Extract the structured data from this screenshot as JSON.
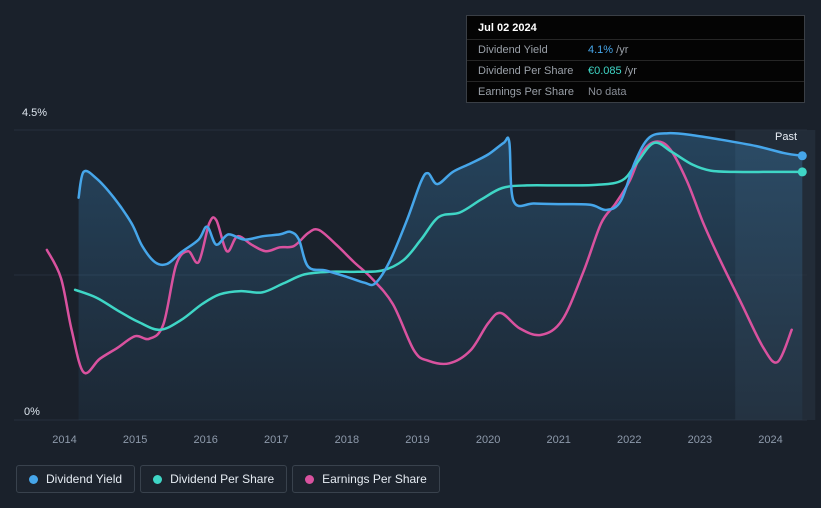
{
  "page": {
    "background": "#1a212b"
  },
  "tooltip": {
    "date": "Jul 02 2024",
    "rows": [
      {
        "label": "Dividend Yield",
        "value": "4.1%",
        "suffix": " /yr",
        "color": "#46a6ea"
      },
      {
        "label": "Dividend Per Share",
        "value": "€0.085",
        "suffix": " /yr",
        "color": "#3fd6c6"
      },
      {
        "label": "Earnings Per Share",
        "value": "No data",
        "suffix": "",
        "color": "#8a8f98"
      }
    ]
  },
  "axis": {
    "y_max_label": "4.5%",
    "y_min_label": "0%",
    "past_label": "Past"
  },
  "legend": {
    "items": [
      {
        "label": "Dividend Yield",
        "color": "#46a6ea"
      },
      {
        "label": "Dividend Per Share",
        "color": "#3fd6c6"
      },
      {
        "label": "Earnings Per Share",
        "color": "#d9529f"
      }
    ]
  },
  "chart_data": {
    "type": "line",
    "x_ticks": [
      2014,
      2015,
      2016,
      2017,
      2018,
      2019,
      2020,
      2021,
      2022,
      2023,
      2024
    ],
    "ylim": [
      0,
      4.5
    ],
    "y_unit": "%",
    "grid_values": [
      4.5,
      2.25,
      0
    ],
    "past_region_start_year": 2023.5,
    "x_end": 2024.55,
    "legend_position": "bottom-left",
    "series": [
      {
        "name": "Dividend Yield",
        "color": "#46a6ea",
        "area_fill": true,
        "end_dot": true,
        "points": [
          [
            2014.2,
            3.45
          ],
          [
            2014.27,
            3.85
          ],
          [
            2014.45,
            3.75
          ],
          [
            2014.7,
            3.45
          ],
          [
            2014.95,
            3.05
          ],
          [
            2015.1,
            2.7
          ],
          [
            2015.28,
            2.45
          ],
          [
            2015.45,
            2.42
          ],
          [
            2015.65,
            2.6
          ],
          [
            2015.9,
            2.8
          ],
          [
            2016.02,
            3.0
          ],
          [
            2016.15,
            2.72
          ],
          [
            2016.32,
            2.88
          ],
          [
            2016.55,
            2.8
          ],
          [
            2016.8,
            2.85
          ],
          [
            2017.05,
            2.88
          ],
          [
            2017.2,
            2.92
          ],
          [
            2017.32,
            2.8
          ],
          [
            2017.45,
            2.38
          ],
          [
            2017.7,
            2.32
          ],
          [
            2018.0,
            2.22
          ],
          [
            2018.25,
            2.13
          ],
          [
            2018.4,
            2.12
          ],
          [
            2018.6,
            2.45
          ],
          [
            2018.85,
            3.1
          ],
          [
            2019.05,
            3.7
          ],
          [
            2019.15,
            3.83
          ],
          [
            2019.28,
            3.66
          ],
          [
            2019.5,
            3.85
          ],
          [
            2019.75,
            3.98
          ],
          [
            2020.0,
            4.12
          ],
          [
            2020.22,
            4.3
          ],
          [
            2020.3,
            4.31
          ],
          [
            2020.36,
            3.4
          ],
          [
            2020.65,
            3.36
          ],
          [
            2021.05,
            3.35
          ],
          [
            2021.45,
            3.34
          ],
          [
            2021.68,
            3.26
          ],
          [
            2021.88,
            3.4
          ],
          [
            2022.08,
            4.0
          ],
          [
            2022.28,
            4.38
          ],
          [
            2022.55,
            4.45
          ],
          [
            2022.9,
            4.42
          ],
          [
            2023.3,
            4.35
          ],
          [
            2023.8,
            4.25
          ],
          [
            2024.2,
            4.14
          ],
          [
            2024.45,
            4.1
          ]
        ]
      },
      {
        "name": "Dividend Per Share",
        "color": "#3fd6c6",
        "area_fill": false,
        "end_dot": true,
        "points": [
          [
            2014.15,
            2.02
          ],
          [
            2014.45,
            1.9
          ],
          [
            2014.75,
            1.7
          ],
          [
            2015.05,
            1.52
          ],
          [
            2015.35,
            1.4
          ],
          [
            2015.65,
            1.55
          ],
          [
            2015.95,
            1.8
          ],
          [
            2016.2,
            1.95
          ],
          [
            2016.5,
            2.0
          ],
          [
            2016.8,
            1.98
          ],
          [
            2017.1,
            2.12
          ],
          [
            2017.4,
            2.26
          ],
          [
            2017.75,
            2.3
          ],
          [
            2018.15,
            2.3
          ],
          [
            2018.5,
            2.32
          ],
          [
            2018.8,
            2.48
          ],
          [
            2019.05,
            2.8
          ],
          [
            2019.3,
            3.15
          ],
          [
            2019.6,
            3.22
          ],
          [
            2019.9,
            3.42
          ],
          [
            2020.2,
            3.6
          ],
          [
            2020.55,
            3.64
          ],
          [
            2021.05,
            3.64
          ],
          [
            2021.55,
            3.65
          ],
          [
            2021.9,
            3.72
          ],
          [
            2022.1,
            3.98
          ],
          [
            2022.35,
            4.3
          ],
          [
            2022.6,
            4.16
          ],
          [
            2022.9,
            3.96
          ],
          [
            2023.15,
            3.87
          ],
          [
            2023.5,
            3.85
          ],
          [
            2024.0,
            3.85
          ],
          [
            2024.45,
            3.85
          ]
        ]
      },
      {
        "name": "Earnings Per Share",
        "color": "#d9529f",
        "area_fill": false,
        "end_dot": false,
        "points": [
          [
            2013.75,
            2.64
          ],
          [
            2013.95,
            2.2
          ],
          [
            2014.1,
            1.4
          ],
          [
            2014.27,
            0.74
          ],
          [
            2014.5,
            0.95
          ],
          [
            2014.75,
            1.12
          ],
          [
            2015.0,
            1.3
          ],
          [
            2015.2,
            1.26
          ],
          [
            2015.4,
            1.48
          ],
          [
            2015.58,
            2.4
          ],
          [
            2015.75,
            2.62
          ],
          [
            2015.9,
            2.45
          ],
          [
            2016.05,
            3.05
          ],
          [
            2016.15,
            3.1
          ],
          [
            2016.3,
            2.62
          ],
          [
            2016.45,
            2.85
          ],
          [
            2016.65,
            2.72
          ],
          [
            2016.85,
            2.62
          ],
          [
            2017.05,
            2.68
          ],
          [
            2017.25,
            2.7
          ],
          [
            2017.45,
            2.9
          ],
          [
            2017.6,
            2.95
          ],
          [
            2017.85,
            2.72
          ],
          [
            2018.1,
            2.45
          ],
          [
            2018.35,
            2.2
          ],
          [
            2018.65,
            1.8
          ],
          [
            2018.95,
            1.08
          ],
          [
            2019.15,
            0.92
          ],
          [
            2019.45,
            0.88
          ],
          [
            2019.75,
            1.08
          ],
          [
            2020.0,
            1.5
          ],
          [
            2020.18,
            1.66
          ],
          [
            2020.45,
            1.42
          ],
          [
            2020.75,
            1.32
          ],
          [
            2021.05,
            1.55
          ],
          [
            2021.35,
            2.3
          ],
          [
            2021.6,
            3.05
          ],
          [
            2021.8,
            3.35
          ],
          [
            2022.0,
            3.7
          ],
          [
            2022.18,
            4.15
          ],
          [
            2022.38,
            4.32
          ],
          [
            2022.58,
            4.2
          ],
          [
            2022.82,
            3.7
          ],
          [
            2023.05,
            3.05
          ],
          [
            2023.3,
            2.45
          ],
          [
            2023.6,
            1.78
          ],
          [
            2023.9,
            1.12
          ],
          [
            2024.1,
            0.9
          ],
          [
            2024.3,
            1.4
          ]
        ]
      }
    ]
  }
}
